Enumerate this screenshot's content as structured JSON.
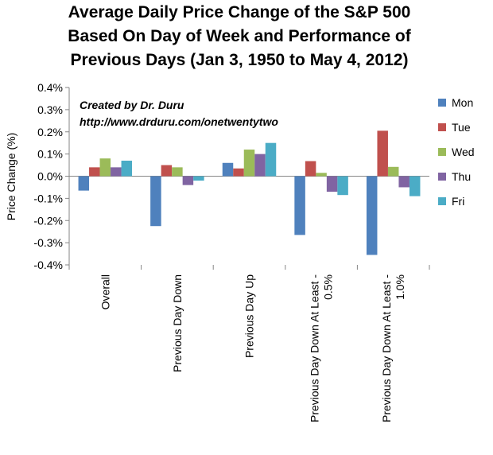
{
  "chart_data": {
    "type": "bar",
    "title_lines": [
      "Average Daily Price Change of the S&P 500",
      "Based On Day of Week and Performance of",
      "Previous Days (Jan 3, 1950 to May 4, 2012)"
    ],
    "ylabel": "Price Change (%)",
    "xlabel": "",
    "ylim": [
      -0.4,
      0.4
    ],
    "yticks": [
      0.4,
      0.3,
      0.2,
      0.1,
      0.0,
      -0.1,
      -0.2,
      -0.3,
      -0.4
    ],
    "ytick_labels": [
      "0.4%",
      "0.3%",
      "0.2%",
      "0.1%",
      "0.0%",
      "-0.1%",
      "-0.2%",
      "-0.3%",
      "-0.4%"
    ],
    "categories": [
      [
        "Overall"
      ],
      [
        "Previous Day Down"
      ],
      [
        "Previous Day Up"
      ],
      [
        "Previous Day Down At Least -",
        "0.5%"
      ],
      [
        "Previous Day Down At Least -",
        "1.0%"
      ]
    ],
    "series": [
      {
        "name": "Mon",
        "color": "#4F81BD",
        "values": [
          -0.065,
          -0.225,
          0.06,
          -0.265,
          -0.355
        ]
      },
      {
        "name": "Tue",
        "color": "#C0504D",
        "values": [
          0.04,
          0.05,
          0.035,
          0.068,
          0.205
        ]
      },
      {
        "name": "Wed",
        "color": "#9BBB59",
        "values": [
          0.08,
          0.04,
          0.12,
          0.015,
          0.042
        ]
      },
      {
        "name": "Thu",
        "color": "#8064A2",
        "values": [
          0.04,
          -0.04,
          0.1,
          -0.07,
          -0.05
        ]
      },
      {
        "name": "Fri",
        "color": "#4BACC6",
        "values": [
          0.07,
          -0.02,
          0.15,
          -0.085,
          -0.09
        ]
      }
    ],
    "legend_position": "right",
    "grid": false,
    "annotations": [
      "Created by Dr. Duru",
      "http://www.drduru.com/onetwentytwo"
    ]
  }
}
